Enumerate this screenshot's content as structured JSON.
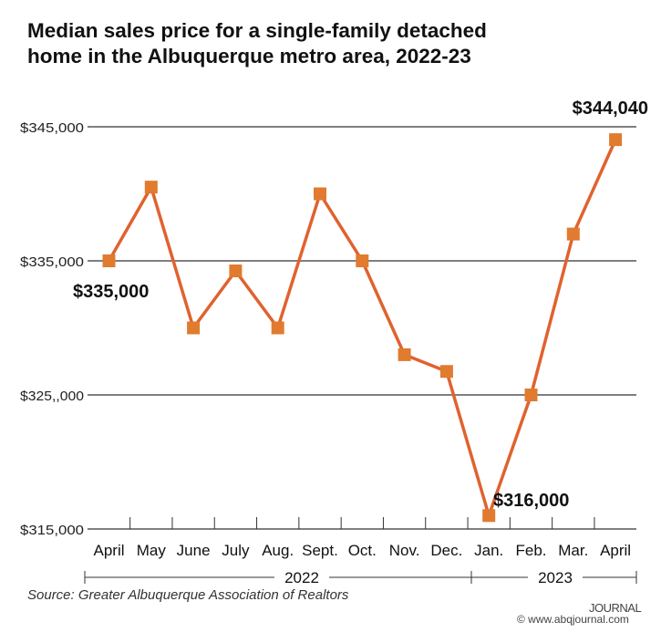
{
  "chart_data": {
    "type": "line",
    "title": "Median sales price for a single-family detached home in the Albuquerque metro area, 2022-23",
    "categories": [
      "April",
      "May",
      "June",
      "July",
      "Aug.",
      "Sept.",
      "Oct.",
      "Nov.",
      "Dec.",
      "Jan.",
      "Feb.",
      "Mar.",
      "April"
    ],
    "year_groups": [
      {
        "label": "2022",
        "span": 9
      },
      {
        "label": "2023",
        "span": 4
      }
    ],
    "values": [
      335000,
      340500,
      330000,
      334250,
      330000,
      340000,
      335000,
      328000,
      326750,
      316000,
      325000,
      337000,
      344040
    ],
    "y_ticks": [
      345000,
      335000,
      325000,
      315000
    ],
    "y_tick_labels": [
      "$345,000",
      "$335,000",
      "$325,,000",
      "$315,000"
    ],
    "ylim": [
      315000,
      345000
    ],
    "grid": true,
    "annotations": [
      {
        "index": 0,
        "text": "$335,000"
      },
      {
        "index": 9,
        "text": "$316,000"
      },
      {
        "index": 12,
        "text": "$344,040"
      }
    ],
    "line_color": "#e0622f",
    "marker_color": "#e07b2f"
  },
  "source": "Source: Greater Albuquerque Association of Realtors",
  "logo": {
    "name": "JOURNAL",
    "url": "© www.abqjournal.com"
  }
}
